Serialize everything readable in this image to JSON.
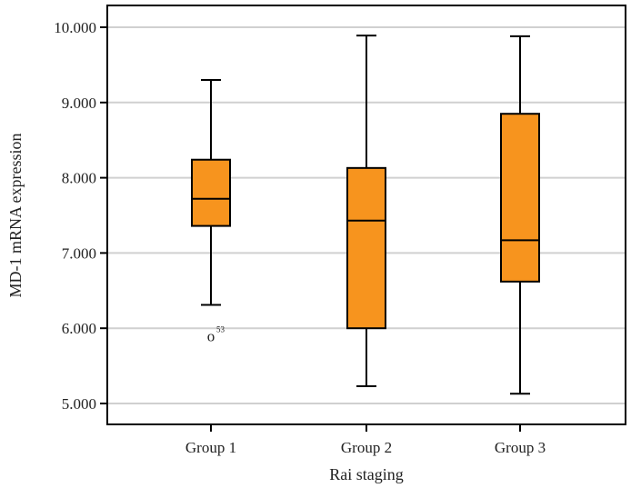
{
  "chart_data": {
    "type": "box",
    "title": "",
    "xlabel": "Rai staging",
    "ylabel": "MD-1 mRNA expression",
    "ylim": [
      4.72,
      10.29
    ],
    "yticks": [
      5,
      6,
      7,
      8,
      9,
      10
    ],
    "ytick_labels": [
      "5.000",
      "6.000",
      "7.000",
      "8.000",
      "9.000",
      "10.000"
    ],
    "grid": "horizontal",
    "box_color": "#F7941E",
    "categories": [
      "Group 1",
      "Group 2",
      "Group 3"
    ],
    "boxes": [
      {
        "whisker_low": 6.31,
        "q1": 7.36,
        "median": 7.72,
        "q3": 8.24,
        "whisker_high": 9.3,
        "outliers": [
          {
            "value": 5.9,
            "label": "53"
          }
        ]
      },
      {
        "whisker_low": 5.23,
        "q1": 6.0,
        "median": 7.43,
        "q3": 8.13,
        "whisker_high": 9.89,
        "outliers": []
      },
      {
        "whisker_low": 5.13,
        "q1": 6.62,
        "median": 7.17,
        "q3": 8.85,
        "whisker_high": 9.88,
        "outliers": []
      }
    ]
  }
}
